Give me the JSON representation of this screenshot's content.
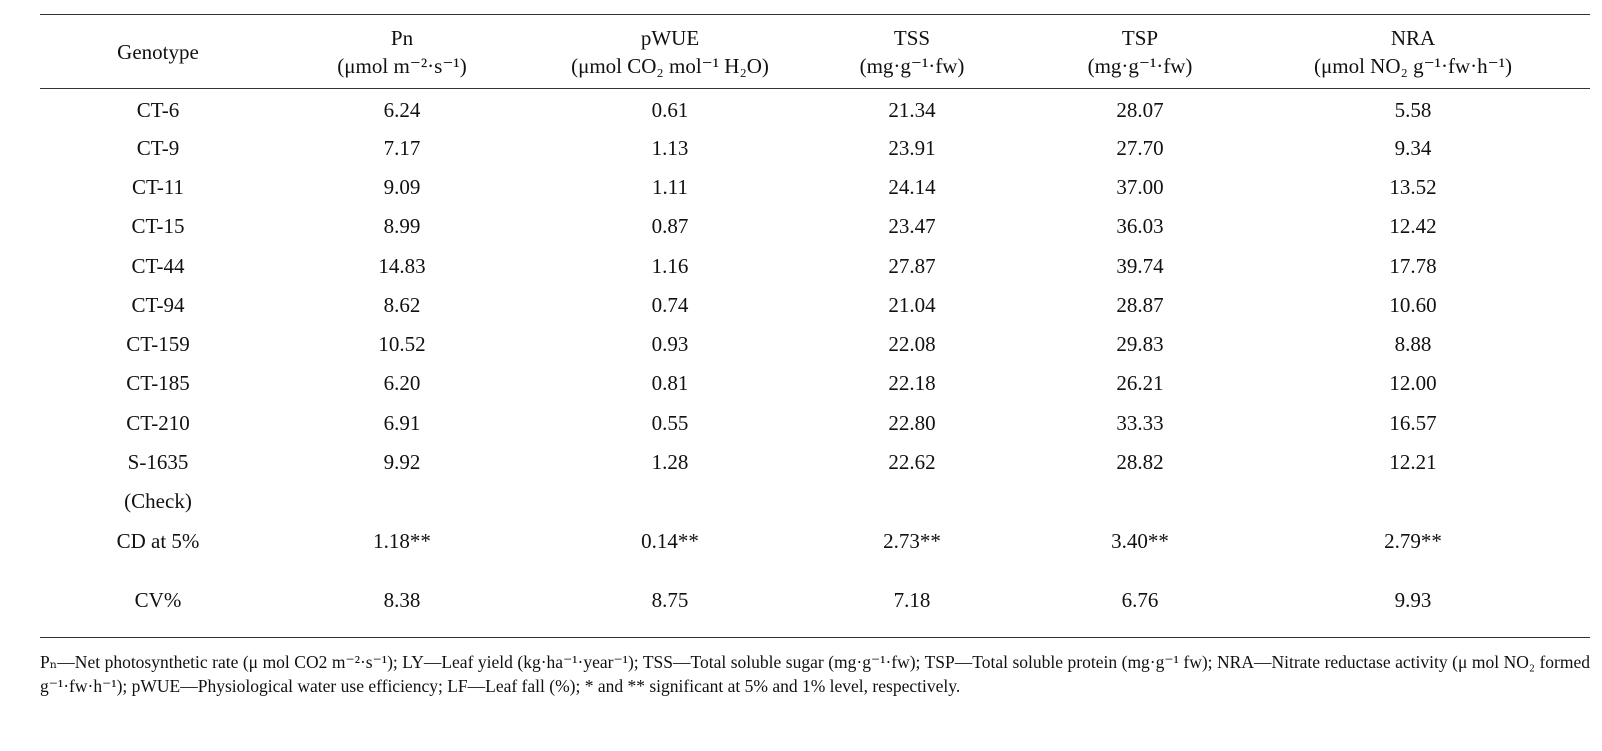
{
  "table": {
    "columns": [
      {
        "name": "Genotype"
      },
      {
        "name": "Pn",
        "unit": "(μmol m⁻²·s⁻¹)"
      },
      {
        "name": "pWUE",
        "unit": "(μmol CO₂ mol⁻¹ H₂O)"
      },
      {
        "name": "TSS",
        "unit": "(mg·g⁻¹·fw)"
      },
      {
        "name": "TSP",
        "unit": "(mg·g⁻¹·fw)"
      },
      {
        "name": "NRA",
        "unit": "(μmol NO₂ g⁻¹·fw·h⁻¹)"
      }
    ],
    "rows": [
      [
        "CT-6",
        "6.24",
        "0.61",
        "21.34",
        "28.07",
        "5.58"
      ],
      [
        "CT-9",
        "7.17",
        "1.13",
        "23.91",
        "27.70",
        "9.34"
      ],
      [
        "CT-11",
        "9.09",
        "1.11",
        "24.14",
        "37.00",
        "13.52"
      ],
      [
        "CT-15",
        "8.99",
        "0.87",
        "23.47",
        "36.03",
        "12.42"
      ],
      [
        "CT-44",
        "14.83",
        "1.16",
        "27.87",
        "39.74",
        "17.78"
      ],
      [
        "CT-94",
        "8.62",
        "0.74",
        "21.04",
        "28.87",
        "10.60"
      ],
      [
        "CT-159",
        "10.52",
        "0.93",
        "22.08",
        "29.83",
        "8.88"
      ],
      [
        "CT-185",
        "6.20",
        "0.81",
        "22.18",
        "26.21",
        "12.00"
      ],
      [
        "CT-210",
        "6.91",
        "0.55",
        "22.80",
        "33.33",
        "16.57"
      ],
      [
        "S-1635",
        "9.92",
        "1.28",
        "22.62",
        "28.82",
        "12.21"
      ],
      [
        "(Check)"
      ],
      [
        "CD at 5%",
        "1.18**",
        "0.14**",
        "2.73**",
        "3.40**",
        "2.79**"
      ],
      [
        "CV%",
        "8.38",
        "8.75",
        "7.18",
        "6.76",
        "9.93"
      ]
    ]
  },
  "footnote": "Pₙ—Net photosynthetic rate (μ mol CO2 m⁻²·s⁻¹); LY—Leaf yield (kg·ha⁻¹·year⁻¹); TSS—Total soluble sugar (mg·g⁻¹·fw); TSP—Total soluble protein (mg·g⁻¹ fw); NRA—Nitrate reductase activity (μ mol NO₂ formed g⁻¹·fw·h⁻¹); pWUE—Physiological water use efficiency; LF—Leaf fall (%); * and ** significant at 5% and 1% level, respectively."
}
